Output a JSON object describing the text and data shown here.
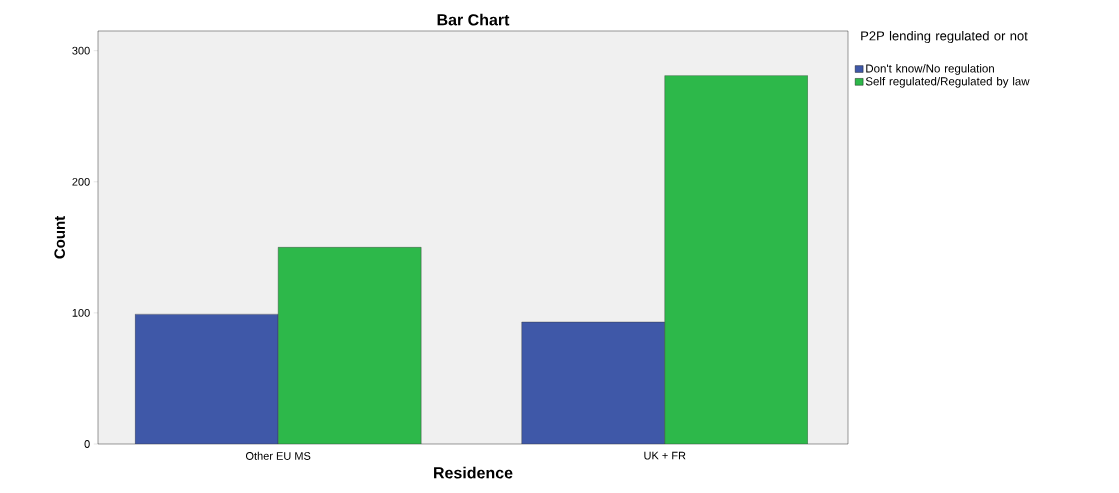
{
  "chart_data": {
    "type": "bar",
    "title": "Bar Chart",
    "xlabel": "Residence",
    "ylabel": "Count",
    "legend_title": "P2P lending regulated or not",
    "categories": [
      "Other EU MS",
      "UK + FR"
    ],
    "series": [
      {
        "name": "Don't know/No regulation",
        "color": "#3f58a8",
        "values": [
          99,
          93
        ]
      },
      {
        "name": "Self regulated/Regulated by law",
        "color": "#2db84a",
        "values": [
          150,
          281
        ]
      }
    ],
    "ylim": [
      0,
      315
    ],
    "yticks": [
      0,
      100,
      200,
      300
    ],
    "legend": "top right"
  }
}
